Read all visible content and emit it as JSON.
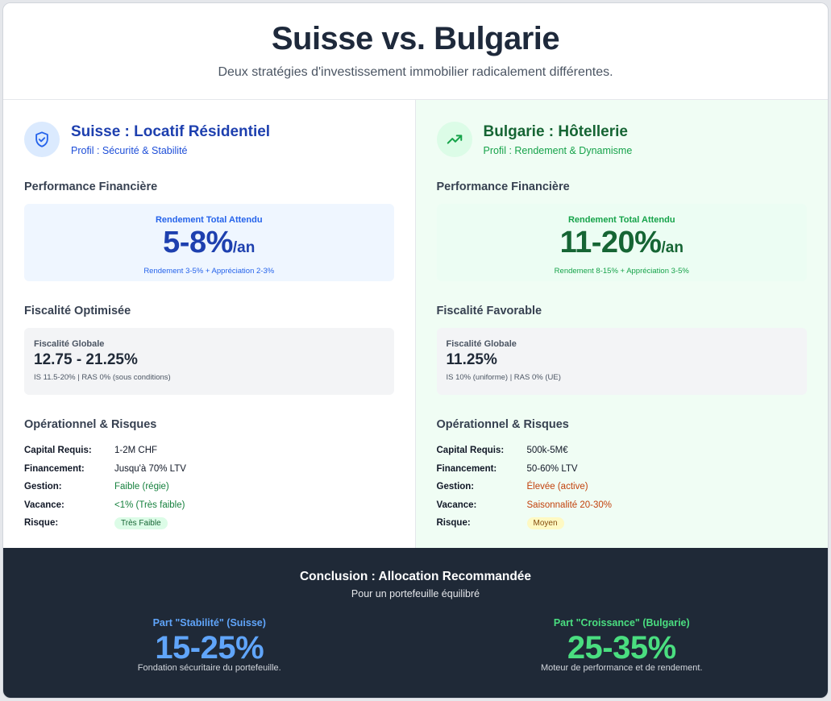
{
  "header": {
    "title": "Suisse vs. Bulgarie",
    "subtitle": "Deux stratégies d'investissement immobilier radicalement différentes."
  },
  "colors": {
    "swiss_accent": "#1e40af",
    "bulgaria_accent": "#166534",
    "footer_bg": "#1f2937"
  },
  "left": {
    "icon": "shield-check-icon",
    "title": "Suisse : Locatif Résidentiel",
    "profile": "Profil : Sécurité & Stabilité",
    "perf_heading": "Performance Financière",
    "perf_label": "Rendement Total Attendu",
    "perf_value": "5-8%",
    "perf_unit": "/an",
    "perf_sub": "Rendement 3-5% + Appréciation 2-3%",
    "fisc_heading": "Fiscalité Optimisée",
    "fisc_label": "Fiscalité Globale",
    "fisc_value": "12.75 - 21.25%",
    "fisc_sub": "IS 11.5-20% | RAS 0% (sous conditions)",
    "ops_heading": "Opérationnel & Risques",
    "ops": [
      {
        "key": "Capital Requis:",
        "value": "1-2M CHF"
      },
      {
        "key": "Financement:",
        "value": "Jusqu'à 70% LTV"
      },
      {
        "key": "Gestion:",
        "value": "Faible (régie)"
      },
      {
        "key": "Vacance:",
        "value": "<1% (Très faible)"
      },
      {
        "key": "Risque:",
        "value": "Très Faible"
      }
    ]
  },
  "right": {
    "icon": "trending-up-icon",
    "title": "Bulgarie : Hôtellerie",
    "profile": "Profil : Rendement & Dynamisme",
    "perf_heading": "Performance Financière",
    "perf_label": "Rendement Total Attendu",
    "perf_value": "11-20%",
    "perf_unit": "/an",
    "perf_sub": "Rendement 8-15% + Appréciation 3-5%",
    "fisc_heading": "Fiscalité Favorable",
    "fisc_label": "Fiscalité Globale",
    "fisc_value": "11.25%",
    "fisc_sub": "IS 10% (uniforme) | RAS 0% (UE)",
    "ops_heading": "Opérationnel & Risques",
    "ops": [
      {
        "key": "Capital Requis:",
        "value": "500k-5M€"
      },
      {
        "key": "Financement:",
        "value": "50-60% LTV"
      },
      {
        "key": "Gestion:",
        "value": "Élevée (active)"
      },
      {
        "key": "Vacance:",
        "value": "Saisonnalité 20-30%"
      },
      {
        "key": "Risque:",
        "value": "Moyen"
      }
    ]
  },
  "conclusion": {
    "title": "Conclusion : Allocation Recommandée",
    "subtitle": "Pour un portefeuille équilibré",
    "stability": {
      "label": "Part \"Stabilité\" (Suisse)",
      "value": "15-25%",
      "desc": "Fondation sécuritaire du portefeuille."
    },
    "growth": {
      "label": "Part \"Croissance\" (Bulgarie)",
      "value": "25-35%",
      "desc": "Moteur de performance et de rendement."
    }
  }
}
